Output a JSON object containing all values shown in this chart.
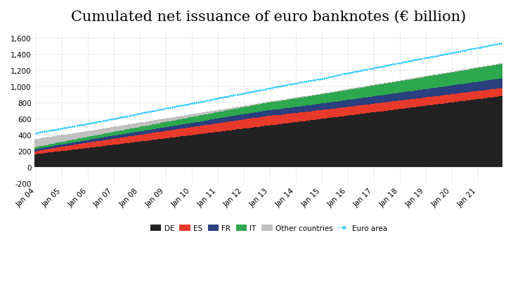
{
  "title": "Cumulated net issuance of euro banknotes (€ billion)",
  "title_fontsize": 15,
  "ylim": [
    -200,
    1700
  ],
  "yticks": [
    -200,
    0,
    200,
    400,
    600,
    800,
    1000,
    1200,
    1400,
    1600
  ],
  "background_color": "#ffffff",
  "grid_color": "#bbbbbb",
  "colors": {
    "DE": "#222222",
    "ES": "#e8392a",
    "FR": "#2a3f7e",
    "IT": "#2da84e",
    "Other": "#c0c0c0",
    "EuroArea": "#00bfff"
  },
  "n_months": 216,
  "start_year": 2004,
  "xtick_years": [
    2004,
    2005,
    2006,
    2007,
    2008,
    2009,
    2010,
    2011,
    2012,
    2013,
    2014,
    2015,
    2016,
    2017,
    2018,
    2019,
    2020,
    2021
  ],
  "legend_labels": [
    "DE",
    "ES",
    "FR",
    "IT",
    "Other countries",
    "Euro area"
  ]
}
